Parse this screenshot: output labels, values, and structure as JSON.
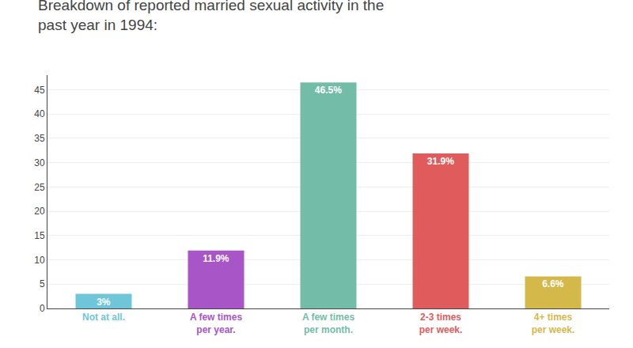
{
  "chart_data": {
    "type": "bar",
    "title": "Breakdown of reported married sexual activity in the\npast year in 1994:",
    "categories": [
      "Not at all.",
      "A few times\nper year.",
      "A few times\nper month.",
      "2-3 times\nper week.",
      "4+ times\nper week."
    ],
    "values": [
      3.0,
      11.9,
      46.5,
      31.9,
      6.6
    ],
    "value_labels": [
      "3%",
      "11.9%",
      "46.5%",
      "31.9%",
      "6.6%"
    ],
    "data_labels": true,
    "colors": [
      "#6EC6D8",
      "#A855C8",
      "#72BCA8",
      "#E05C5C",
      "#D4B84A"
    ],
    "ylim": [
      0,
      48
    ],
    "yticks": [
      0,
      5,
      10,
      15,
      20,
      25,
      30,
      35,
      40,
      45
    ],
    "grid": true
  }
}
